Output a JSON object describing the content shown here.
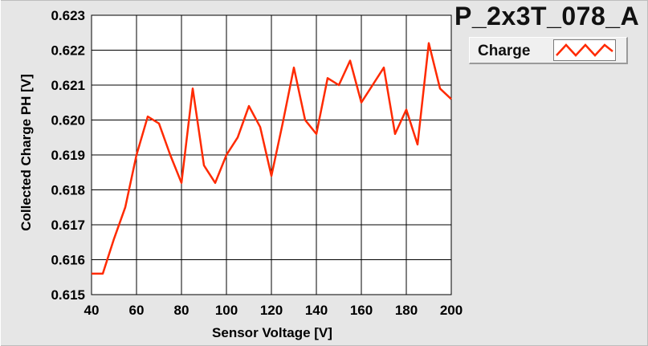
{
  "chart_data": {
    "type": "line",
    "title": "P_2x3T_078_A",
    "xlabel": "Sensor Voltage [V]",
    "ylabel": "Collected Charge PH [V]",
    "xlim": [
      40,
      200
    ],
    "ylim": [
      0.615,
      0.623
    ],
    "x_ticks": [
      "40",
      "60",
      "80",
      "100",
      "120",
      "140",
      "160",
      "180",
      "200"
    ],
    "x_tick_values": [
      40,
      60,
      80,
      100,
      120,
      140,
      160,
      180,
      200
    ],
    "y_ticks": [
      "0.615",
      "0.616",
      "0.617",
      "0.618",
      "0.619",
      "0.620",
      "0.621",
      "0.622",
      "0.623"
    ],
    "y_tick_values": [
      0.615,
      0.616,
      0.617,
      0.618,
      0.619,
      0.62,
      0.621,
      0.622,
      0.623
    ],
    "grid": true,
    "legend_position": "top-right",
    "series": [
      {
        "name": "Charge",
        "color": "#ff2a00",
        "x": [
          40,
          45,
          50,
          55,
          60,
          65,
          70,
          75,
          80,
          85,
          90,
          95,
          100,
          105,
          110,
          115,
          120,
          125,
          130,
          135,
          140,
          145,
          150,
          155,
          160,
          165,
          170,
          175,
          180,
          185,
          190,
          195,
          200
        ],
        "y": [
          0.6156,
          0.6156,
          0.6166,
          0.6175,
          0.619,
          0.6201,
          0.6199,
          0.619,
          0.6182,
          0.6209,
          0.6187,
          0.6182,
          0.619,
          0.6195,
          0.6204,
          0.6198,
          0.6184,
          0.6199,
          0.6215,
          0.62,
          0.6196,
          0.6212,
          0.621,
          0.6217,
          0.6205,
          0.621,
          0.6215,
          0.6196,
          0.6203,
          0.6193,
          0.6222,
          0.6209,
          0.6206
        ]
      }
    ]
  }
}
